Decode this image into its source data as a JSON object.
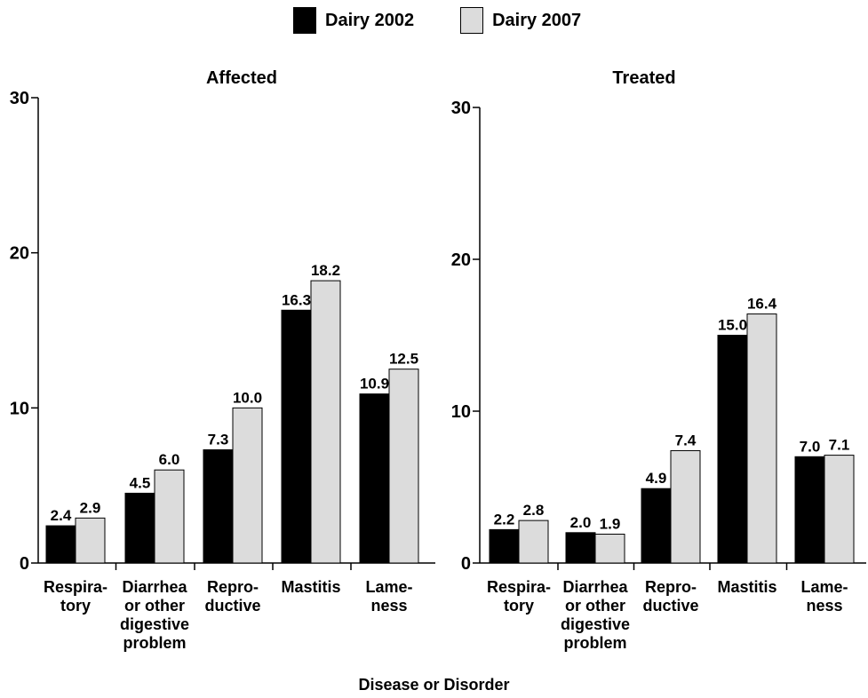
{
  "legend": {
    "items": [
      {
        "label": "Dairy 2002",
        "color": "#000000"
      },
      {
        "label": "Dairy 2007",
        "color": "#dcdcdc"
      }
    ]
  },
  "xaxis_title": "Disease or Disorder",
  "chart_data": [
    {
      "type": "bar",
      "title": "Affected",
      "xlabel": "Disease or Disorder",
      "ylabel": "",
      "ylim": [
        0,
        30
      ],
      "yticks": [
        0,
        10,
        20,
        30
      ],
      "categories": [
        [
          "Respira-",
          "tory"
        ],
        [
          "Diarrhea",
          "or other",
          "digestive",
          "problem"
        ],
        [
          "Repro-",
          "ductive"
        ],
        [
          "Mastitis"
        ],
        [
          "Lame-",
          "ness"
        ]
      ],
      "series": [
        {
          "name": "Dairy 2002",
          "color": "#000000",
          "values": [
            2.4,
            4.5,
            7.3,
            16.3,
            10.9
          ],
          "labels": [
            "2.4",
            "4.5",
            "7.3",
            "16.3",
            "10.9"
          ]
        },
        {
          "name": "Dairy 2007",
          "color": "#dcdcdc",
          "values": [
            2.9,
            6.0,
            10.0,
            18.2,
            12.5
          ],
          "labels": [
            "2.9",
            "6.0",
            "10.0",
            "18.2",
            "12.5"
          ]
        }
      ]
    },
    {
      "type": "bar",
      "title": "Treated",
      "xlabel": "Disease or Disorder",
      "ylabel": "",
      "ylim": [
        0,
        30
      ],
      "yticks": [
        0,
        10,
        20,
        30
      ],
      "categories": [
        [
          "Respira-",
          "tory"
        ],
        [
          "Diarrhea",
          "or other",
          "digestive",
          "problem"
        ],
        [
          "Repro-",
          "ductive"
        ],
        [
          "Mastitis"
        ],
        [
          "Lame-",
          "ness"
        ]
      ],
      "series": [
        {
          "name": "Dairy 2002",
          "color": "#000000",
          "values": [
            2.2,
            2.0,
            4.9,
            15.0,
            7.0
          ],
          "labels": [
            "2.2",
            "2.0",
            "4.9",
            "15.0",
            "7.0"
          ]
        },
        {
          "name": "Dairy 2007",
          "color": "#dcdcdc",
          "values": [
            2.8,
            1.9,
            7.4,
            16.4,
            7.1
          ],
          "labels": [
            "2.8",
            "1.9",
            "7.4",
            "16.4",
            "7.1"
          ]
        }
      ]
    }
  ]
}
